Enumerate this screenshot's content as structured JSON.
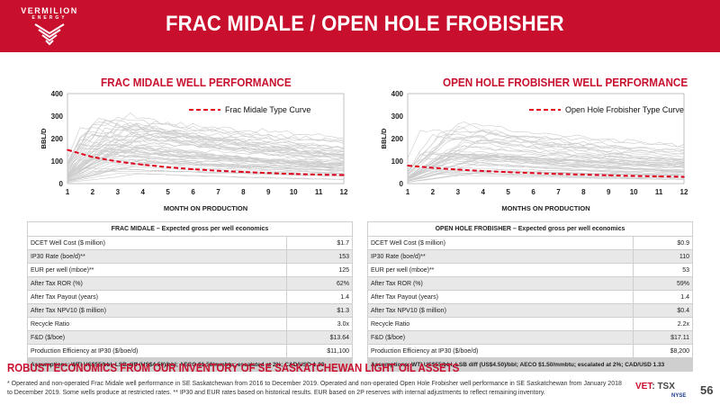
{
  "logo": {
    "word_top": "VERMILION",
    "word_bottom": "ENERGY"
  },
  "title": "FRAC MIDALE / OPEN HOLE FROBISHER",
  "colors": {
    "brand_red": "#c8102e",
    "type_curve": "#e0001b",
    "well_lines": "#cccccc"
  },
  "left_chart": {
    "title": "FRAC MIDALE WELL PERFORMANCE"
  },
  "right_chart": {
    "title": "OPEN HOLE FROBISHER WELL PERFORMANCE"
  },
  "chart_data": [
    {
      "type": "line",
      "title": "FRAC MIDALE WELL PERFORMANCE",
      "xlabel": "MONTH ON PRODUCTION",
      "ylabel": "BBL/D",
      "x": [
        1,
        2,
        3,
        4,
        5,
        6,
        7,
        8,
        9,
        10,
        11,
        12
      ],
      "xlim": [
        1,
        12
      ],
      "ylim": [
        0,
        400
      ],
      "yticks": [
        0,
        100,
        200,
        300,
        400
      ],
      "legend_position": "top-right",
      "series": [
        {
          "name": "Frac Midale Type Curve",
          "values": [
            150,
            118,
            98,
            84,
            73,
            64,
            57,
            52,
            47,
            43,
            40,
            38
          ]
        }
      ]
    },
    {
      "type": "line",
      "title": "OPEN HOLE FROBISHER WELL PERFORMANCE",
      "xlabel": "MONTHS ON PRODUCTION",
      "ylabel": "BBL/D",
      "x": [
        1,
        2,
        3,
        4,
        5,
        6,
        7,
        8,
        9,
        10,
        11,
        12
      ],
      "xlim": [
        1,
        12
      ],
      "ylim": [
        0,
        400
      ],
      "yticks": [
        0,
        100,
        200,
        300,
        400
      ],
      "legend_position": "top-right",
      "series": [
        {
          "name": "Open Hole Frobisher Type Curve",
          "values": [
            80,
            70,
            62,
            56,
            51,
            47,
            43,
            40,
            37,
            34,
            32,
            30
          ]
        }
      ]
    }
  ],
  "left_table": {
    "header": "FRAC MIDALE – Expected gross per well economics",
    "rows": [
      {
        "label": "DCET Well Cost ($ million)",
        "value": "$1.7"
      },
      {
        "label": "IP30 Rate (boe/d)**",
        "value": "153"
      },
      {
        "label": "EUR per well (mboe)**",
        "value": "125"
      },
      {
        "label": "After Tax ROR (%)",
        "value": "62%"
      },
      {
        "label": "After Tax Payout (years)",
        "value": "1.4"
      },
      {
        "label": "After Tax NPV10 ($ million)",
        "value": "$1.3"
      },
      {
        "label": "Recycle Ratio",
        "value": "3.0x"
      },
      {
        "label": "F&D ($/boe)",
        "value": "$13.64"
      },
      {
        "label": "Production Efficiency at IP30 ($/boe/d)",
        "value": "$11,100"
      }
    ],
    "assumptions": "Assumptions: WTI US$55/bbl, LSB diff (US$4.50)/bbl; AECO $1.50/mmbtu; escalated at 2%; CAD/USD 1.33"
  },
  "right_table": {
    "header": "OPEN HOLE FROBISHER – Expected gross per well economics",
    "rows": [
      {
        "label": "DCET Well Cost ($ million)",
        "value": "$0.9"
      },
      {
        "label": "IP30 Rate (boe/d)**",
        "value": "110"
      },
      {
        "label": "EUR per well (mboe)**",
        "value": "53"
      },
      {
        "label": "After Tax ROR (%)",
        "value": "59%"
      },
      {
        "label": "After Tax Payout (years)",
        "value": "1.4"
      },
      {
        "label": "After Tax NPV10 ($ million)",
        "value": "$0.4"
      },
      {
        "label": "Recycle Ratio",
        "value": "2.2x"
      },
      {
        "label": "F&D ($/boe)",
        "value": "$17.11"
      },
      {
        "label": "Production Efficiency at IP30 ($/boe/d)",
        "value": "$8,200"
      }
    ],
    "assumptions": "Assumptions: WTI US$55/bbl, LSB diff (US$4.50)/bbl; AECO $1.50/mmbtu; escalated at 2%; CAD/USD 1.33"
  },
  "robust": "ROBUST ECONOMICS FROM OUR INVENTORY OF SE SASKATCHEWAN LIGHT OIL ASSETS",
  "footnote": "* Operated and non-operated Frac Midale well performance in SE Saskatchewan from 2016 to December 2019. Operated and non-operated Open Hole Frobisher well performance in SE Saskatchewan from January 2018 to December 2019.  Some wells produce at restricted rates. ** IP30 and EUR rates based on historical results. EUR based on 2P reserves with internal adjustments to reflect remaining inventory.",
  "exchange": {
    "vet": "VET",
    "tsx": ": TSX",
    "nyse": "NYSE"
  },
  "page_number": "56"
}
